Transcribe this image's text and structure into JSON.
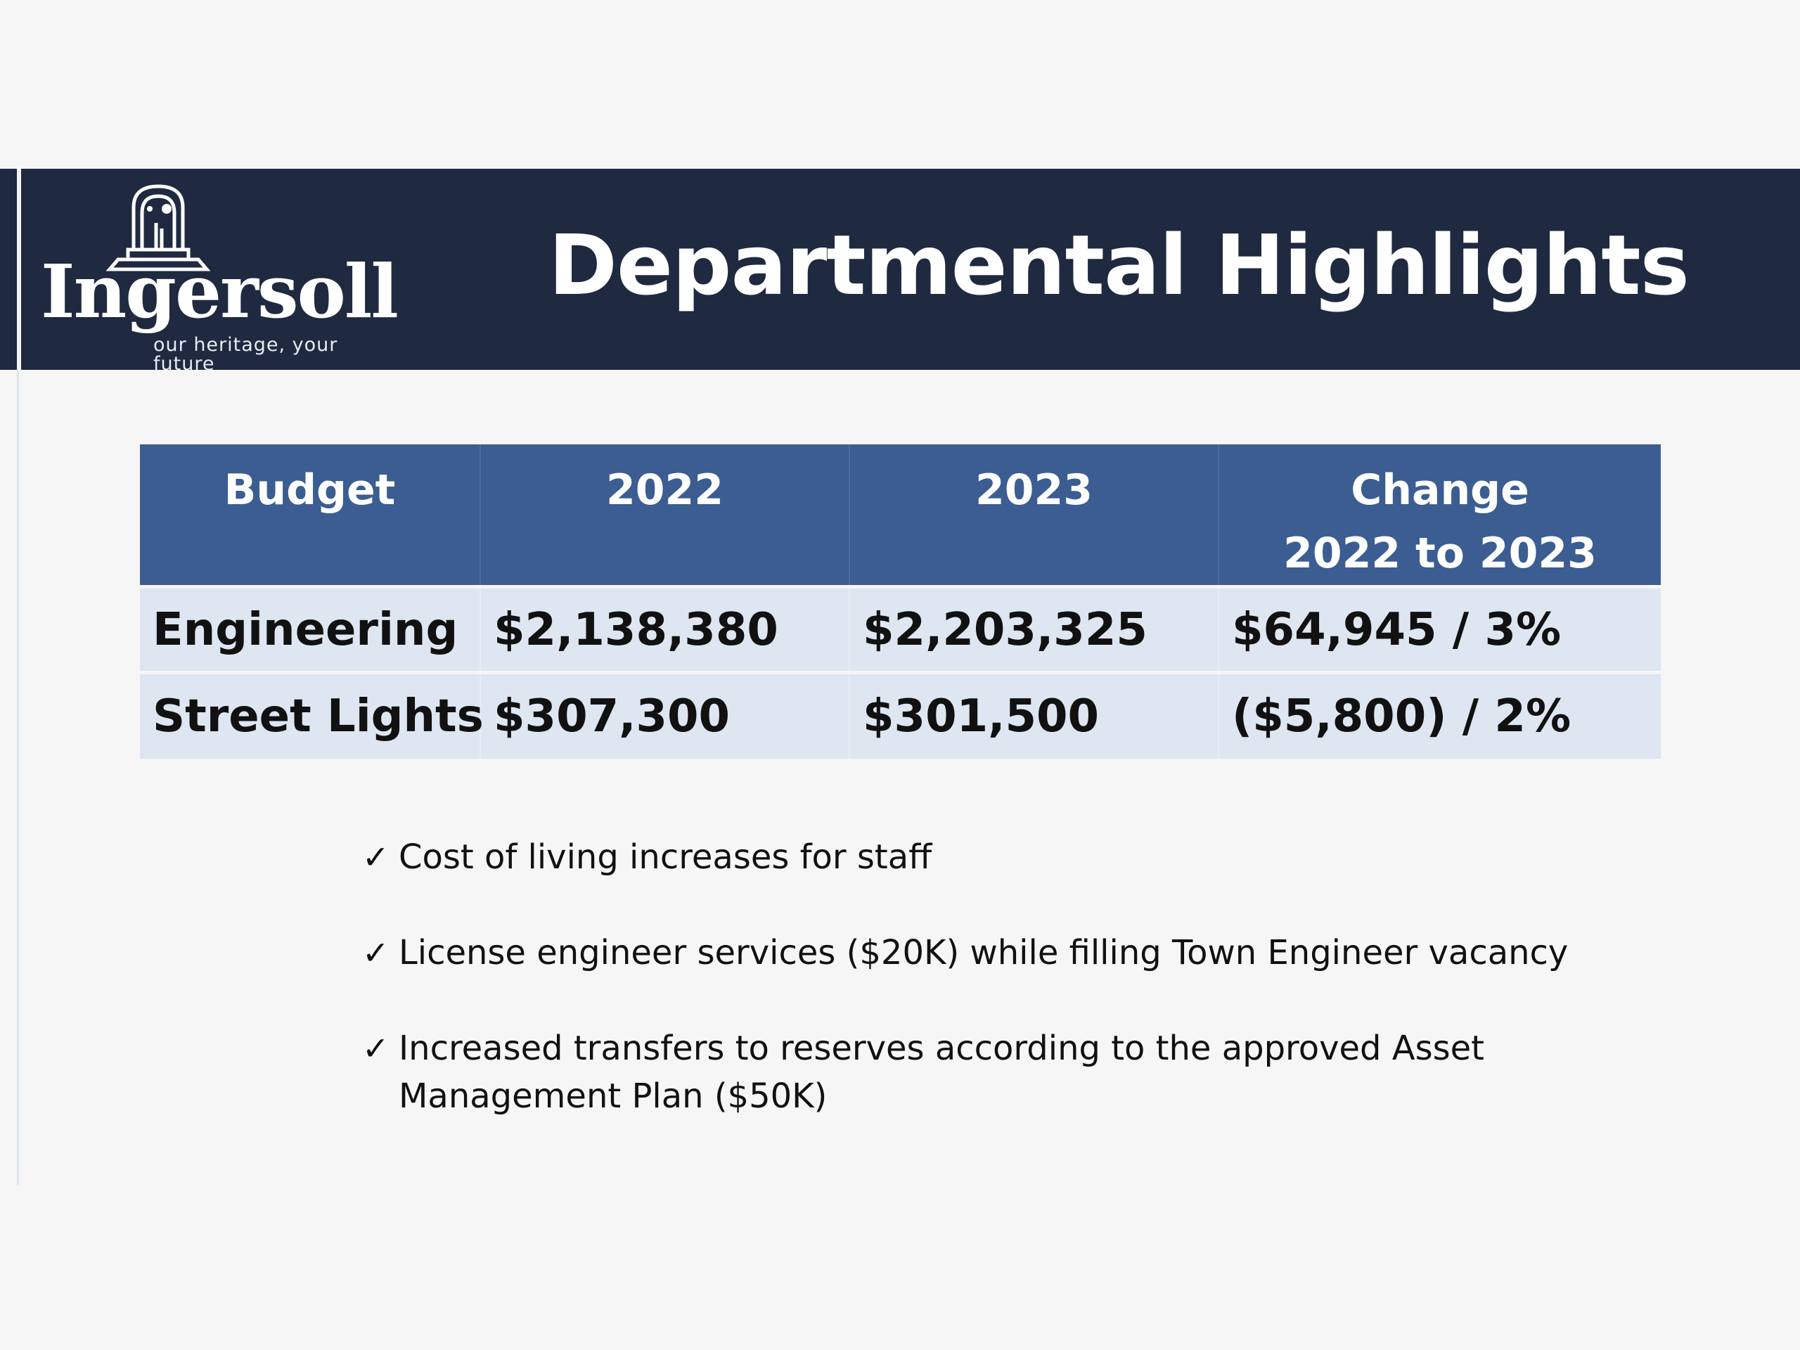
{
  "logo": {
    "wordmark": "Ingersoll",
    "tagline": "our heritage, your future",
    "icon": "clock-tower-icon"
  },
  "title": "Departmental Highlights",
  "table": {
    "headers": [
      "Budget",
      "2022",
      "2023",
      "Change",
      "2022 to 2023"
    ],
    "rows": [
      {
        "name": "Engineering",
        "y2022": "$2,138,380",
        "y2023": "$2,203,325",
        "change": "$64,945 / 3%"
      },
      {
        "name": "Street Lights",
        "y2022": "$307,300",
        "y2023": "$301,500",
        "change": "($5,800) / 2%"
      }
    ]
  },
  "bullets": {
    "check_glyph": "✓",
    "items": [
      "Cost of living increases for staff",
      "License engineer services ($20K) while filling Town Engineer vacancy",
      "Increased transfers to reserves according to the approved Asset Management Plan ($50K)"
    ]
  },
  "colors": {
    "header_band": "#1f2a41",
    "table_header": "#3b5d91",
    "table_row": "#dde6f1",
    "page_background": "#f6f6f6"
  }
}
